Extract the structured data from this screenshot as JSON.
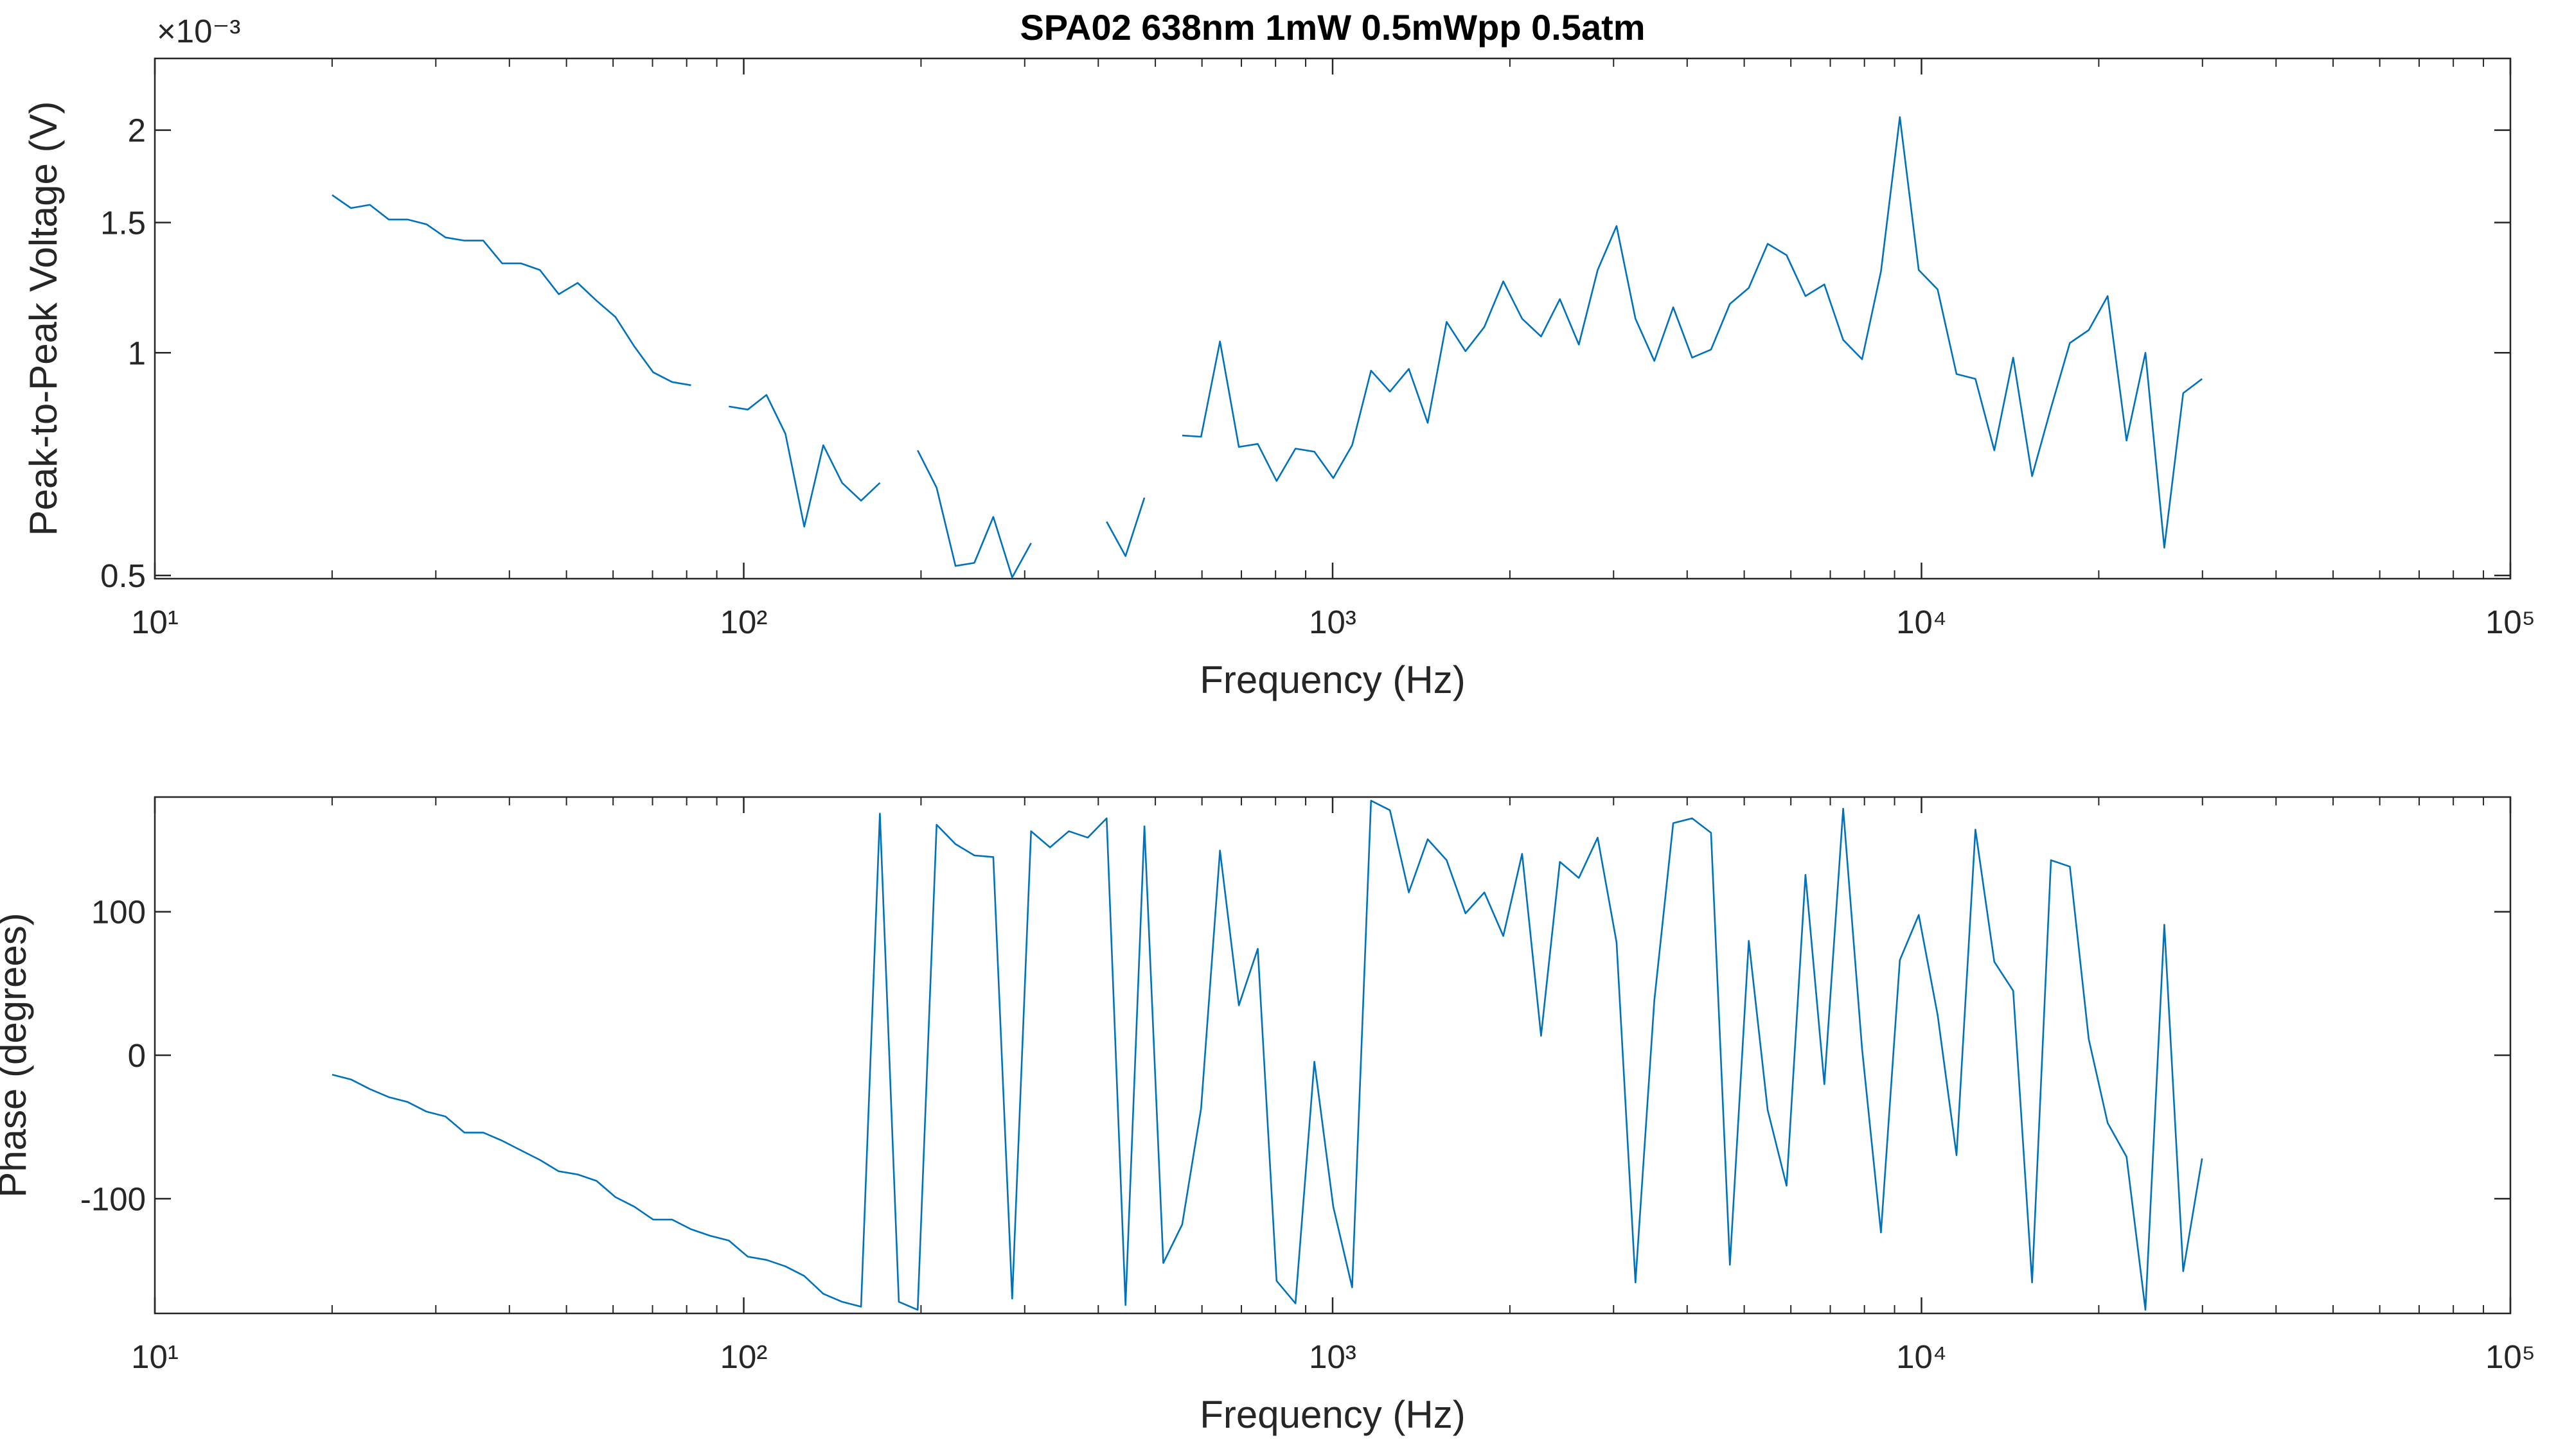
{
  "chart_data": [
    {
      "type": "line",
      "title": "SPA02 638nm 1mW 0.5mWpp 0.5atm",
      "x_label": "Frequency (Hz)",
      "y_label": "Peak-to-Peak Voltage (V)",
      "y_multiplier": "×10⁻³",
      "xscale": "log",
      "yscale": "log",
      "xlim": [
        10,
        100000
      ],
      "ylim": [
        0.495,
        2.5
      ],
      "xticks": [
        {
          "value": 10,
          "label": "10¹"
        },
        {
          "value": 100,
          "label": "10²"
        },
        {
          "value": 1000,
          "label": "10³"
        },
        {
          "value": 10000,
          "label": "10⁴"
        },
        {
          "value": 100000,
          "label": "10⁵"
        }
      ],
      "yticks": [
        0.5,
        1,
        1.5,
        2
      ],
      "x": [
        20,
        21.53,
        23.18,
        24.96,
        26.87,
        28.93,
        31.15,
        33.54,
        36.11,
        38.88,
        41.86,
        45.07,
        48.52,
        52.24,
        56.24,
        60.55,
        65.19,
        70.19,
        75.57,
        81.37,
        87.61,
        94.33,
        101.6,
        109.3,
        117.7,
        126.7,
        136.5,
        146.9,
        158.2,
        170.3,
        183.4,
        197.4,
        212.6,
        228.9,
        246.4,
        265.3,
        285.7,
        307.6,
        331.2,
        356.5,
        383.9,
        413.3,
        445,
        479.1,
        515.8,
        555.4,
        597.9,
        643.8,
        693.1,
        746.2,
        803.3,
        864.9,
        931.2,
        1002.6,
        1079.5,
        1162.2,
        1251.3,
        1347.2,
        1450.5,
        1561.7,
        1681.2,
        1810,
        1949,
        2098,
        2259,
        2432,
        2619,
        2819,
        3035,
        3268,
        3518,
        3788,
        4078,
        4391,
        4727,
        5090,
        5480,
        5900,
        6352,
        6839,
        7362,
        7927,
        8535,
        9189,
        9893,
        10651,
        11468,
        12347,
        13293,
        14312,
        15408,
        16590,
        17862,
        19231,
        20705,
        22292,
        24001,
        25840,
        27821,
        29953
      ],
      "series": [
        {
          "color": "#0072bd",
          "values": [
            1.634,
            1.569,
            1.585,
            1.514,
            1.514,
            1.492,
            1.432,
            1.418,
            1.418,
            1.321,
            1.321,
            1.294,
            1.2,
            1.243,
            1.176,
            1.118,
            1.02,
            0.941,
            0.913,
            0.904,
            null,
            0.846,
            0.838,
            0.877,
            0.777,
            0.582,
            0.75,
            0.667,
            0.631,
            0.667,
            null,
            0.738,
            0.657,
            0.515,
            0.52,
            0.6,
            0.497,
            0.553,
            null,
            null,
            null,
            0.591,
            0.531,
            0.637,
            null,
            0.773,
            0.77,
            1.036,
            0.746,
            0.753,
            0.671,
            0.742,
            0.735,
            0.677,
            0.75,
            0.946,
            0.886,
            0.951,
            0.804,
            1.101,
            1.005,
            1.084,
            1.249,
            1.112,
            1.052,
            1.182,
            1.026,
            1.294,
            1.484,
            1.112,
            0.975,
            1.152,
            0.985,
            1.01,
            1.164,
            1.224,
            1.404,
            1.355,
            1.193,
            1.237,
            1.041,
            0.98,
            1.288,
            2.083,
            1.294,
            1.218,
            0.936,
            0.922,
            0.738,
            0.985,
            0.681,
            0.842,
            1.031,
            1.073,
            1.193,
            0.761,
            1,
            0.545,
            0.882,
            0.922
          ]
        }
      ]
    },
    {
      "type": "line",
      "x_label": "Frequency (Hz)",
      "y_label": "Phase (degrees)",
      "xscale": "log",
      "yscale": "linear",
      "xlim": [
        10,
        100000
      ],
      "ylim": [
        -180,
        180
      ],
      "xticks": [
        {
          "value": 10,
          "label": "10¹"
        },
        {
          "value": 100,
          "label": "10²"
        },
        {
          "value": 1000,
          "label": "10³"
        },
        {
          "value": 10000,
          "label": "10⁴"
        },
        {
          "value": 100000,
          "label": "10⁵"
        }
      ],
      "yticks": [
        -100,
        0,
        100
      ],
      "x": [
        20,
        21.53,
        23.18,
        24.96,
        26.87,
        28.93,
        31.15,
        33.54,
        36.11,
        38.88,
        41.86,
        45.07,
        48.52,
        52.24,
        56.24,
        60.55,
        65.19,
        70.19,
        75.57,
        81.37,
        87.61,
        94.33,
        101.6,
        109.3,
        117.7,
        126.7,
        136.5,
        146.9,
        158.2,
        170.3,
        183.4,
        197.4,
        212.6,
        228.9,
        246.4,
        265.3,
        285.7,
        307.6,
        331.2,
        356.5,
        383.9,
        413.3,
        445,
        479.1,
        515.8,
        555.4,
        597.9,
        643.8,
        693.1,
        746.2,
        803.3,
        864.9,
        931.2,
        1002.6,
        1079.5,
        1162.2,
        1251.3,
        1347.2,
        1450.5,
        1561.7,
        1681.2,
        1810,
        1949,
        2098,
        2259,
        2432,
        2619,
        2819,
        3035,
        3268,
        3518,
        3788,
        4078,
        4391,
        4727,
        5090,
        5480,
        5900,
        6352,
        6839,
        7362,
        7927,
        8535,
        9189,
        9893,
        10651,
        11468,
        12347,
        13293,
        14312,
        15408,
        16590,
        17862,
        19231,
        20705,
        22292,
        24001,
        25840,
        27821,
        29953
      ],
      "series": [
        {
          "color": "#0072bd",
          "values": [
            -13.5,
            -16.9,
            -23.6,
            -29.2,
            -32.6,
            -39.3,
            -42.7,
            -53.9,
            -53.9,
            -59.6,
            -66.3,
            -73,
            -80.9,
            -83.1,
            -87.6,
            -98.9,
            -105.6,
            -114.6,
            -114.6,
            -121.3,
            -125.8,
            -129.2,
            -140.4,
            -142.7,
            -147.2,
            -153.9,
            -166.3,
            -171.9,
            -175.3,
            168.5,
            -171.9,
            -177.5,
            160.7,
            147.2,
            139.3,
            138.2,
            -169.7,
            156.2,
            144.9,
            156.2,
            151.7,
            165.2,
            -174.2,
            159.6,
            -144.9,
            -118,
            -37.1,
            142.7,
            34.8,
            74.2,
            -157.3,
            -173,
            -4.5,
            -105.6,
            -161.8,
            177.5,
            170.8,
            113.5,
            150.6,
            136,
            98.9,
            113.5,
            83.1,
            140.4,
            13.5,
            134.8,
            123.6,
            151.7,
            78.7,
            -158.4,
            38.2,
            161.8,
            165.2,
            155.1,
            -146.1,
            79.8,
            -38.2,
            -91,
            125.8,
            -20.2,
            171.9,
            4.5,
            -123.6,
            66.3,
            97.8,
            28.1,
            -69.7,
            157.3,
            65.2,
            44.9,
            -158.4,
            136,
            131.5,
            11.2,
            -47.2,
            -70.8,
            -177.5,
            91,
            -150.6,
            -71.9
          ]
        }
      ]
    }
  ]
}
